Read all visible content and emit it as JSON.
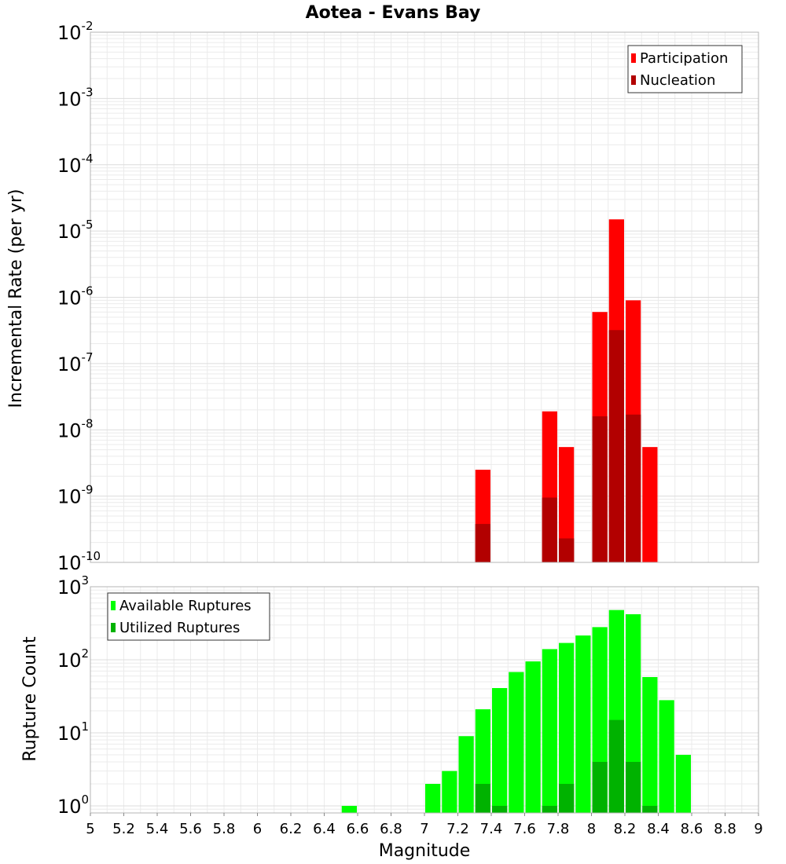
{
  "chart_data": [
    {
      "type": "bar",
      "title": "Aotea - Evans Bay",
      "ylabel": "Incremental Rate (per yr)",
      "xlabel": "",
      "yscale": "log",
      "ylim": [
        1e-10,
        0.01
      ],
      "xlim": [
        5,
        9
      ],
      "bar_width": 0.1,
      "grid": true,
      "legend_position": "top-right",
      "y_ticks": [
        {
          "base": "10",
          "exp": "-2"
        },
        {
          "base": "10",
          "exp": "-3"
        },
        {
          "base": "10",
          "exp": "-4"
        },
        {
          "base": "10",
          "exp": "-5"
        },
        {
          "base": "10",
          "exp": "-6"
        },
        {
          "base": "10",
          "exp": "-7"
        },
        {
          "base": "10",
          "exp": "-8"
        },
        {
          "base": "10",
          "exp": "-9"
        },
        {
          "base": "10",
          "exp": "-10"
        }
      ],
      "series": [
        {
          "name": "Participation",
          "color": "#ff0000",
          "x": [
            7.35,
            7.75,
            7.85,
            8.05,
            8.15,
            8.25,
            8.35
          ],
          "values": [
            2.5e-09,
            1.9e-08,
            5.5e-09,
            6e-07,
            1.5e-05,
            9e-07,
            5.5e-09
          ]
        },
        {
          "name": "Nucleation",
          "color": "#b20000",
          "x": [
            7.35,
            7.75,
            7.85,
            8.05,
            8.15,
            8.25
          ],
          "values": [
            3.8e-10,
            9.5e-10,
            2.3e-10,
            1.6e-08,
            3.2e-07,
            1.7e-08
          ]
        }
      ]
    },
    {
      "type": "bar",
      "title": "",
      "ylabel": "Rupture Count",
      "xlabel": "Magnitude",
      "yscale": "log",
      "ylim": [
        0.8,
        1000
      ],
      "xlim": [
        5,
        9
      ],
      "bar_width": 0.1,
      "grid": true,
      "legend_position": "top-left",
      "x_tick_labels": [
        "5",
        "5.2",
        "5.4",
        "5.6",
        "5.8",
        "6",
        "6.2",
        "6.4",
        "6.6",
        "6.8",
        "7",
        "7.2",
        "7.4",
        "7.6",
        "7.8",
        "8",
        "8.2",
        "8.4",
        "8.6",
        "8.8",
        "9"
      ],
      "y_ticks": [
        {
          "base": "10",
          "exp": "3"
        },
        {
          "base": "10",
          "exp": "2"
        },
        {
          "base": "10",
          "exp": "1"
        },
        {
          "base": "10",
          "exp": "0"
        }
      ],
      "series": [
        {
          "name": "Available Ruptures",
          "color": "#00ff00",
          "x": [
            6.55,
            7.05,
            7.15,
            7.25,
            7.35,
            7.45,
            7.55,
            7.65,
            7.75,
            7.85,
            7.95,
            8.05,
            8.15,
            8.25,
            8.35,
            8.45,
            8.55
          ],
          "values": [
            1,
            2,
            3,
            9,
            21,
            41,
            68,
            95,
            140,
            170,
            215,
            280,
            480,
            420,
            58,
            28,
            5
          ]
        },
        {
          "name": "Utilized Ruptures",
          "color": "#00b200",
          "x": [
            7.35,
            7.45,
            7.75,
            7.85,
            8.05,
            8.15,
            8.25,
            8.35
          ],
          "values": [
            2,
            1,
            1,
            2,
            4,
            15,
            4,
            1
          ]
        }
      ]
    }
  ]
}
